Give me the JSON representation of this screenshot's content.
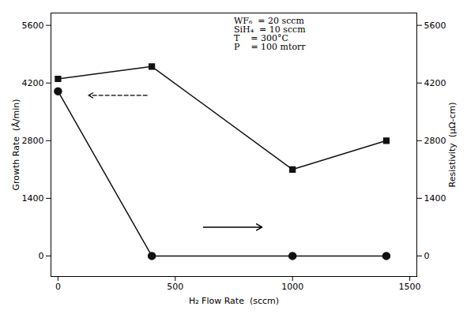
{
  "chart_data": {
    "type": "line",
    "xlabel": "H₂ Flow Rate  (sccm)",
    "ylabel": "Growth Rate  (Å/min)",
    "y2label": "Resistivity  (μΩ-cm)",
    "x": [
      0,
      400,
      1000,
      1400
    ],
    "series": [
      {
        "values": [
          4300,
          4600,
          2100,
          2800
        ],
        "color": "#111111",
        "marker": "square"
      },
      {
        "values": [
          4000,
          0,
          0,
          0
        ],
        "color": "#111111",
        "marker": "circle",
        "axis": "y2"
      }
    ],
    "xlim": [
      -30,
      1530
    ],
    "xticks": [
      0,
      500,
      1000,
      1500
    ],
    "ylim": [
      -500,
      5900
    ],
    "yticks": [
      0,
      1400,
      2800,
      4200,
      5600
    ],
    "y2lim": [
      -500,
      5900
    ],
    "y2ticks": [
      0,
      1400,
      2800,
      4200,
      5600
    ],
    "grid": false,
    "annotations": [
      "WF₆  = 20 sccm",
      "SiH₄  = 10 sccm",
      "T    = 300°C",
      "P    = 100 mtorr"
    ],
    "arrows": [
      {
        "x_start": 380,
        "x_end": 130,
        "y": 3900,
        "line_style": "dashed"
      },
      {
        "x_start": 620,
        "x_end": 870,
        "y": 700,
        "line_style": "solid"
      }
    ]
  }
}
